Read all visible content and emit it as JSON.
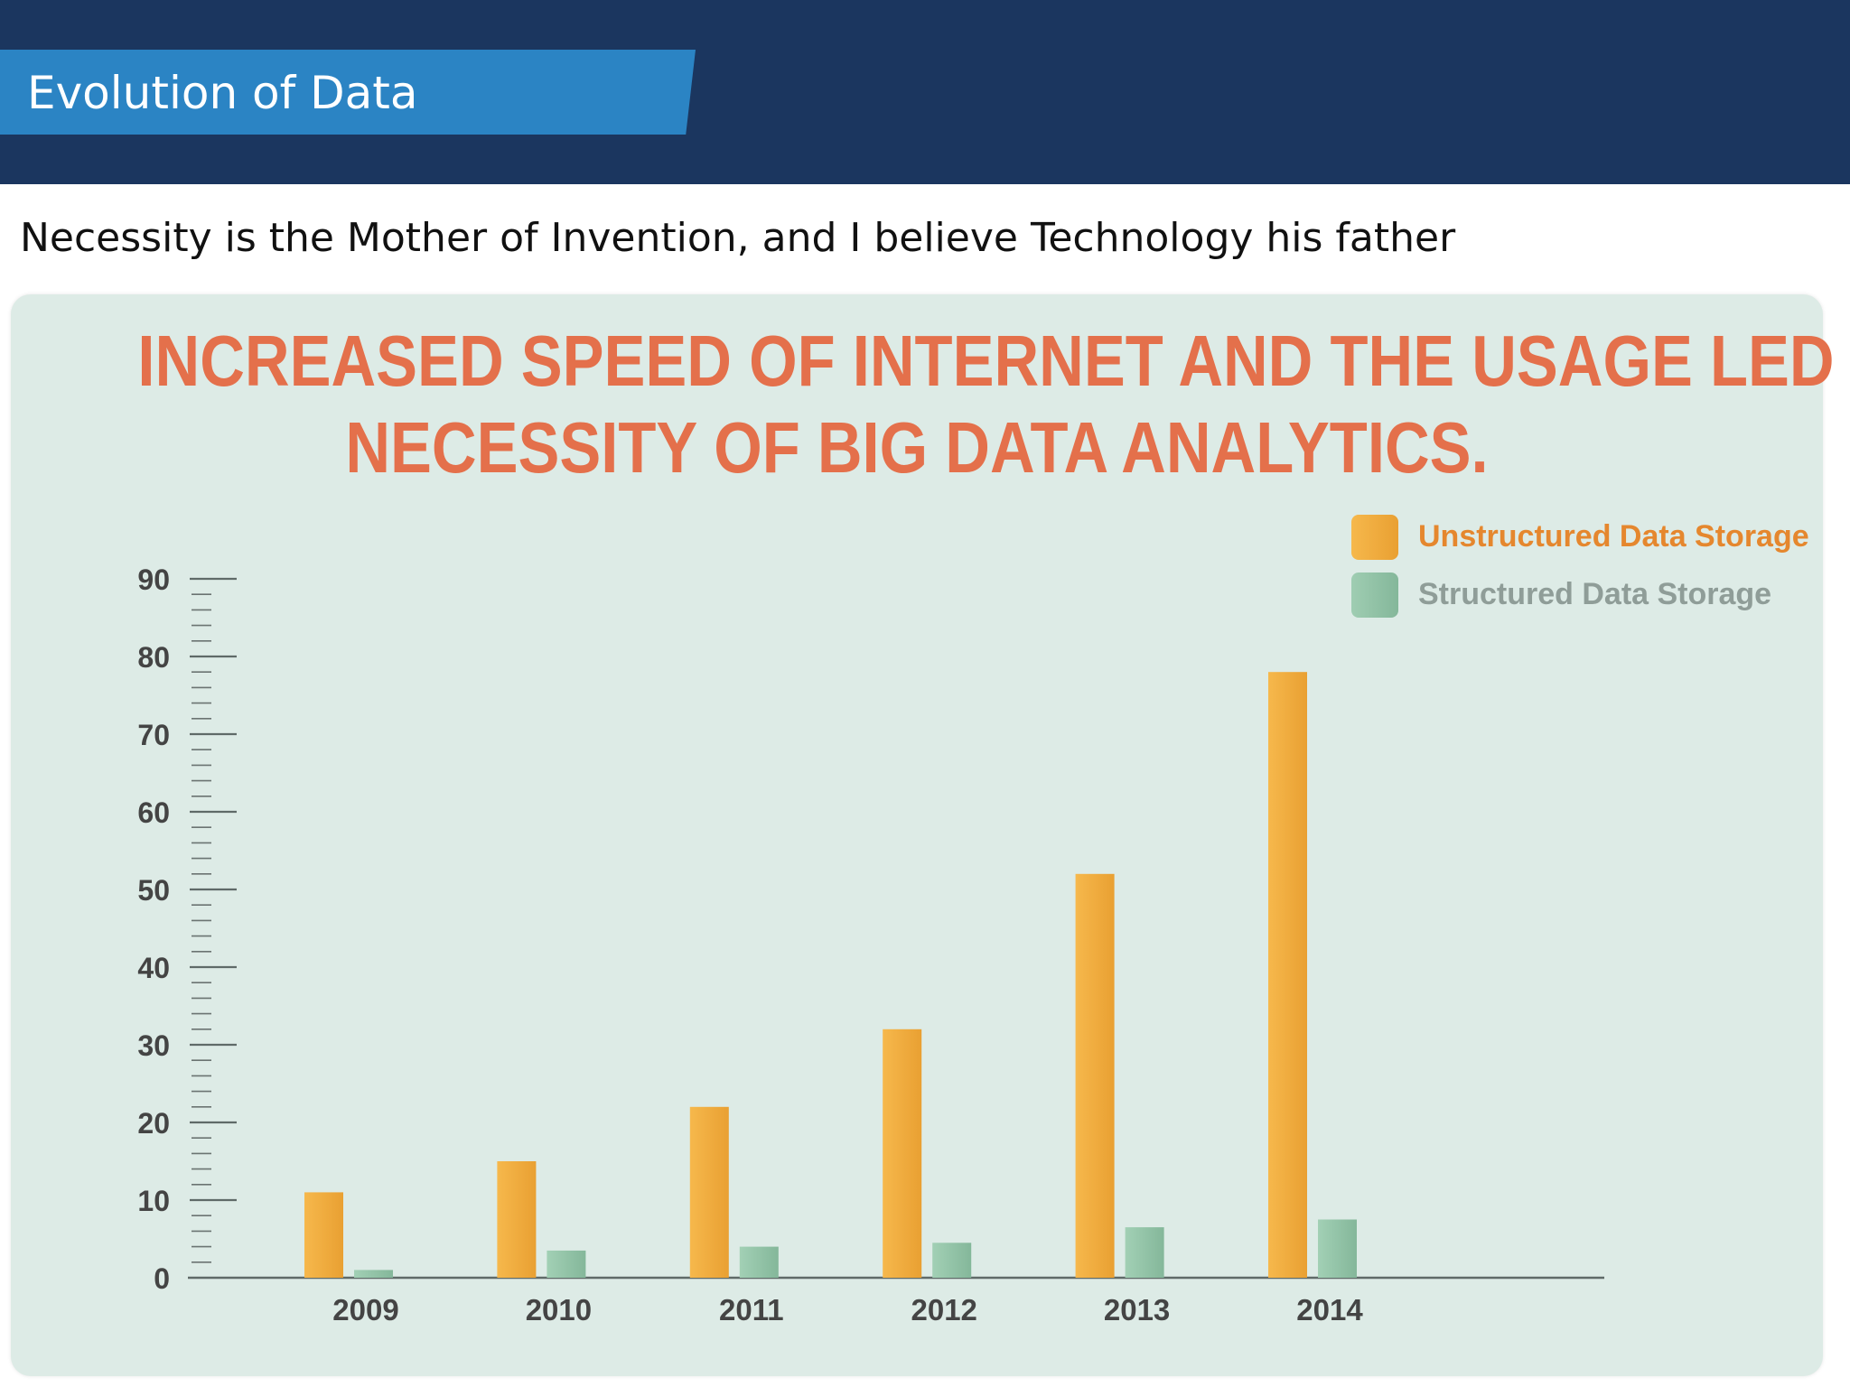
{
  "slide": {
    "title": "Evolution of Data",
    "subtitle": "Necessity is the Mother of Invention, and I believe Technology his father"
  },
  "chart_data": {
    "type": "bar",
    "title_lines": [
      "INCREASED SPEED OF INTERNET AND THE USAGE LED",
      "NECESSITY OF BIG DATA ANALYTICS."
    ],
    "categories": [
      "2009",
      "2010",
      "2011",
      "2012",
      "2013",
      "2014"
    ],
    "series": [
      {
        "name": "Unstructured Data Storage",
        "color": "#f0a93b",
        "values": [
          11,
          15,
          22,
          32,
          52,
          78
        ]
      },
      {
        "name": "Structured Data Storage",
        "color": "#8fc1a4",
        "values": [
          1,
          3.5,
          4,
          4.5,
          6.5,
          7.5
        ]
      }
    ],
    "ylim": [
      0,
      90
    ],
    "yticks": [
      0,
      10,
      20,
      30,
      40,
      50,
      60,
      70,
      80,
      90
    ],
    "xlabel": "",
    "ylabel": "",
    "legend": "top-right",
    "colors": {
      "title": "#e4704b",
      "unstructured_label": "#e5872e",
      "structured_label": "#8f9d98",
      "axis": "#555555",
      "tick_label": "#444444"
    }
  }
}
